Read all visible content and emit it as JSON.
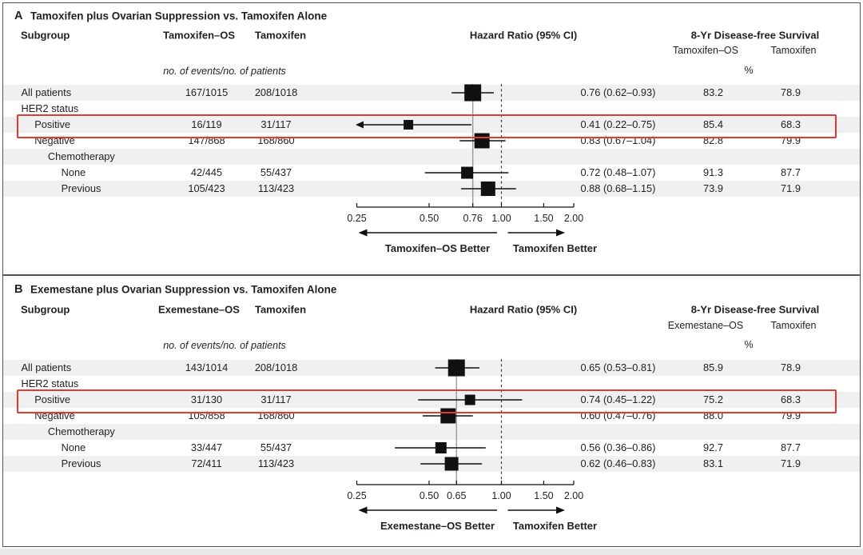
{
  "colors": {
    "accent_red": "#e5392e",
    "row_shade": "#f0f0f1",
    "text": "#231f20",
    "frame_border": "#55565a",
    "ref_line_gray": "#9b9b9b",
    "marker_black": "#111111"
  },
  "figure": {
    "panels": [
      {
        "letter": "A",
        "title": "Tamoxifen plus Ovarian Suppression vs. Tamoxifen Alone",
        "col_subgroup": "Subgroup",
        "col_arm1": "Tamoxifen–OS",
        "col_arm2": "Tamoxifen",
        "col_hr": "Hazard Ratio (95% CI)",
        "col_survival": "8-Yr Disease-free Survival",
        "survival_sub1": "Tamoxifen–OS",
        "survival_sub2": "Tamoxifen",
        "events_note": "no. of events/no. of patients",
        "percent_label": "%",
        "axis_min": 0.25,
        "axis_max": 2.0,
        "ticks": [
          {
            "v": 0.25,
            "label": "0.25"
          },
          {
            "v": 0.5,
            "label": "0.50"
          },
          {
            "v": 0.76,
            "label": "0.76"
          },
          {
            "v": 1.0,
            "label": "1.00"
          },
          {
            "v": 1.5,
            "label": "1.50"
          },
          {
            "v": 2.0,
            "label": "2.00"
          }
        ],
        "ref_hr": 0.76,
        "null_line": 1.0,
        "better_left": "Tamoxifen–OS Better",
        "better_right": "Tamoxifen Better",
        "rows": [
          {
            "label": "All patients",
            "indent": 0,
            "group": false,
            "shaded": true,
            "highlight": false,
            "ev1": "167/1015",
            "ev2": "208/1018",
            "hr": 0.76,
            "lo": 0.62,
            "hi": 0.93,
            "arrow_lo": false,
            "hr_text": "0.76 (0.62–0.93)",
            "s1": "83.2",
            "s2": "78.9",
            "marker": 21
          },
          {
            "label": "HER2 status",
            "indent": 0,
            "group": true,
            "shaded": false,
            "highlight": false
          },
          {
            "label": "Positive",
            "indent": 1,
            "group": false,
            "shaded": true,
            "highlight": true,
            "ev1": "16/119",
            "ev2": "31/117",
            "hr": 0.41,
            "lo": 0.22,
            "hi": 0.75,
            "arrow_lo": true,
            "hr_text": "0.41 (0.22–0.75)",
            "s1": "85.4",
            "s2": "68.3",
            "marker": 12
          },
          {
            "label": "Negative",
            "indent": 1,
            "group": false,
            "shaded": false,
            "highlight": false,
            "ev1": "147/868",
            "ev2": "168/860",
            "hr": 0.83,
            "lo": 0.67,
            "hi": 1.04,
            "arrow_lo": false,
            "hr_text": "0.83 (0.67–1.04)",
            "s1": "82.8",
            "s2": "79.9",
            "marker": 19
          },
          {
            "label": "Chemotherapy",
            "indent": 2,
            "group": true,
            "shaded": true,
            "highlight": false
          },
          {
            "label": "None",
            "indent": 3,
            "group": false,
            "shaded": false,
            "highlight": false,
            "ev1": "42/445",
            "ev2": "55/437",
            "hr": 0.72,
            "lo": 0.48,
            "hi": 1.07,
            "arrow_lo": false,
            "hr_text": "0.72 (0.48–1.07)",
            "s1": "91.3",
            "s2": "87.7",
            "marker": 15
          },
          {
            "label": "Previous",
            "indent": 3,
            "group": false,
            "shaded": true,
            "highlight": false,
            "ev1": "105/423",
            "ev2": "113/423",
            "hr": 0.88,
            "lo": 0.68,
            "hi": 1.15,
            "arrow_lo": false,
            "hr_text": "0.88 (0.68–1.15)",
            "s1": "73.9",
            "s2": "71.9",
            "marker": 18
          }
        ]
      },
      {
        "letter": "B",
        "title": "Exemestane plus Ovarian Suppression vs. Tamoxifen Alone",
        "col_subgroup": "Subgroup",
        "col_arm1": "Exemestane–OS",
        "col_arm2": "Tamoxifen",
        "col_hr": "Hazard Ratio (95% CI)",
        "col_survival": "8-Yr Disease-free Survival",
        "survival_sub1": "Exemestane–OS",
        "survival_sub2": "Tamoxifen",
        "events_note": "no. of events/no. of patients",
        "percent_label": "%",
        "axis_min": 0.25,
        "axis_max": 2.0,
        "ticks": [
          {
            "v": 0.25,
            "label": "0.25"
          },
          {
            "v": 0.5,
            "label": "0.50"
          },
          {
            "v": 0.65,
            "label": "0.65"
          },
          {
            "v": 1.0,
            "label": "1.00"
          },
          {
            "v": 1.5,
            "label": "1.50"
          },
          {
            "v": 2.0,
            "label": "2.00"
          }
        ],
        "ref_hr": 0.65,
        "null_line": 1.0,
        "better_left": "Exemestane–OS Better",
        "better_right": "Tamoxifen Better",
        "rows": [
          {
            "label": "All patients",
            "indent": 0,
            "group": false,
            "shaded": true,
            "highlight": false,
            "ev1": "143/1014",
            "ev2": "208/1018",
            "hr": 0.65,
            "lo": 0.53,
            "hi": 0.81,
            "arrow_lo": false,
            "hr_text": "0.65 (0.53–0.81)",
            "s1": "85.9",
            "s2": "78.9",
            "marker": 21
          },
          {
            "label": "HER2 status",
            "indent": 0,
            "group": true,
            "shaded": false,
            "highlight": false
          },
          {
            "label": "Positive",
            "indent": 1,
            "group": false,
            "shaded": true,
            "highlight": true,
            "ev1": "31/130",
            "ev2": "31/117",
            "hr": 0.74,
            "lo": 0.45,
            "hi": 1.22,
            "arrow_lo": false,
            "hr_text": "0.74 (0.45–1.22)",
            "s1": "75.2",
            "s2": "68.3",
            "marker": 13
          },
          {
            "label": "Negative",
            "indent": 1,
            "group": false,
            "shaded": false,
            "highlight": false,
            "ev1": "105/858",
            "ev2": "168/860",
            "hr": 0.6,
            "lo": 0.47,
            "hi": 0.76,
            "arrow_lo": false,
            "hr_text": "0.60 (0.47–0.76)",
            "s1": "88.0",
            "s2": "79.9",
            "marker": 19
          },
          {
            "label": "Chemotherapy",
            "indent": 2,
            "group": true,
            "shaded": true,
            "highlight": false
          },
          {
            "label": "None",
            "indent": 3,
            "group": false,
            "shaded": false,
            "highlight": false,
            "ev1": "33/447",
            "ev2": "55/437",
            "hr": 0.56,
            "lo": 0.36,
            "hi": 0.86,
            "arrow_lo": false,
            "hr_text": "0.56 (0.36–0.86)",
            "s1": "92.7",
            "s2": "87.7",
            "marker": 14
          },
          {
            "label": "Previous",
            "indent": 3,
            "group": false,
            "shaded": true,
            "highlight": false,
            "ev1": "72/411",
            "ev2": "113/423",
            "hr": 0.62,
            "lo": 0.46,
            "hi": 0.83,
            "arrow_lo": false,
            "hr_text": "0.62 (0.46–0.83)",
            "s1": "83.1",
            "s2": "71.9",
            "marker": 17
          }
        ]
      }
    ]
  },
  "chart_data": [
    {
      "type": "scatter",
      "variant": "forest-plot",
      "title": "A — Tamoxifen plus Ovarian Suppression vs. Tamoxifen Alone",
      "xlabel": "Hazard Ratio (95% CI)",
      "x_scale": "log",
      "xlim": [
        0.25,
        2.0
      ],
      "x_ticks": [
        0.25,
        0.5,
        0.76,
        1.0,
        1.5,
        2.0
      ],
      "null_line": 1.0,
      "overall_hr_reference_line": 0.76,
      "direction_labels": {
        "left": "Tamoxifen–OS Better",
        "right": "Tamoxifen Better"
      },
      "legend_position": "none",
      "grid": false,
      "rows": [
        {
          "subgroup": "All patients",
          "events_arm1": "167/1015",
          "events_arm2": "208/1018",
          "hr": 0.76,
          "ci": [
            0.62,
            0.93
          ],
          "dfs_8yr_arm1": 83.2,
          "dfs_8yr_arm2": 78.9
        },
        {
          "subgroup": "HER2 status: Positive",
          "events_arm1": "16/119",
          "events_arm2": "31/117",
          "hr": 0.41,
          "ci": [
            0.22,
            0.75
          ],
          "dfs_8yr_arm1": 85.4,
          "dfs_8yr_arm2": 68.3,
          "highlighted": true
        },
        {
          "subgroup": "HER2 status: Negative",
          "events_arm1": "147/868",
          "events_arm2": "168/860",
          "hr": 0.83,
          "ci": [
            0.67,
            1.04
          ],
          "dfs_8yr_arm1": 82.8,
          "dfs_8yr_arm2": 79.9
        },
        {
          "subgroup": "Chemotherapy: None",
          "events_arm1": "42/445",
          "events_arm2": "55/437",
          "hr": 0.72,
          "ci": [
            0.48,
            1.07
          ],
          "dfs_8yr_arm1": 91.3,
          "dfs_8yr_arm2": 87.7
        },
        {
          "subgroup": "Chemotherapy: Previous",
          "events_arm1": "105/423",
          "events_arm2": "113/423",
          "hr": 0.88,
          "ci": [
            0.68,
            1.15
          ],
          "dfs_8yr_arm1": 73.9,
          "dfs_8yr_arm2": 71.9
        }
      ]
    },
    {
      "type": "scatter",
      "variant": "forest-plot",
      "title": "B — Exemestane plus Ovarian Suppression vs. Tamoxifen Alone",
      "xlabel": "Hazard Ratio (95% CI)",
      "x_scale": "log",
      "xlim": [
        0.25,
        2.0
      ],
      "x_ticks": [
        0.25,
        0.5,
        0.65,
        1.0,
        1.5,
        2.0
      ],
      "null_line": 1.0,
      "overall_hr_reference_line": 0.65,
      "direction_labels": {
        "left": "Exemestane–OS Better",
        "right": "Tamoxifen Better"
      },
      "legend_position": "none",
      "grid": false,
      "rows": [
        {
          "subgroup": "All patients",
          "events_arm1": "143/1014",
          "events_arm2": "208/1018",
          "hr": 0.65,
          "ci": [
            0.53,
            0.81
          ],
          "dfs_8yr_arm1": 85.9,
          "dfs_8yr_arm2": 78.9
        },
        {
          "subgroup": "HER2 status: Positive",
          "events_arm1": "31/130",
          "events_arm2": "31/117",
          "hr": 0.74,
          "ci": [
            0.45,
            1.22
          ],
          "dfs_8yr_arm1": 75.2,
          "dfs_8yr_arm2": 68.3,
          "highlighted": true
        },
        {
          "subgroup": "HER2 status: Negative",
          "events_arm1": "105/858",
          "events_arm2": "168/860",
          "hr": 0.6,
          "ci": [
            0.47,
            0.76
          ],
          "dfs_8yr_arm1": 88.0,
          "dfs_8yr_arm2": 79.9
        },
        {
          "subgroup": "Chemotherapy: None",
          "events_arm1": "33/447",
          "events_arm2": "55/437",
          "hr": 0.56,
          "ci": [
            0.36,
            0.86
          ],
          "dfs_8yr_arm1": 92.7,
          "dfs_8yr_arm2": 87.7
        },
        {
          "subgroup": "Chemotherapy: Previous",
          "events_arm1": "72/411",
          "events_arm2": "113/423",
          "hr": 0.62,
          "ci": [
            0.46,
            0.83
          ],
          "dfs_8yr_arm1": 83.1,
          "dfs_8yr_arm2": 71.9
        }
      ]
    }
  ]
}
